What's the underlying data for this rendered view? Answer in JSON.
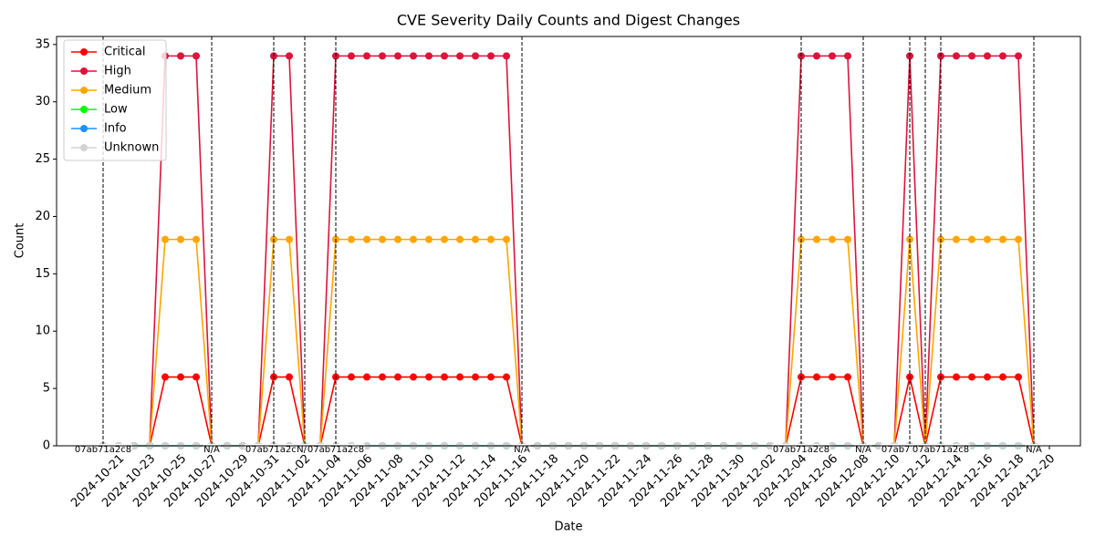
{
  "chart_data": {
    "type": "line",
    "title": "CVE Severity Daily Counts and Digest Changes",
    "x_label": "Date",
    "y_label": "Count",
    "x": [
      "2024-10-20",
      "2024-10-21",
      "2024-10-22",
      "2024-10-23",
      "2024-10-24",
      "2024-10-25",
      "2024-10-26",
      "2024-10-27",
      "2024-10-28",
      "2024-10-29",
      "2024-10-30",
      "2024-10-31",
      "2024-11-01",
      "2024-11-02",
      "2024-11-03",
      "2024-11-04",
      "2024-11-05",
      "2024-11-06",
      "2024-11-07",
      "2024-11-08",
      "2024-11-09",
      "2024-11-10",
      "2024-11-11",
      "2024-11-12",
      "2024-11-13",
      "2024-11-14",
      "2024-11-15",
      "2024-11-16",
      "2024-11-17",
      "2024-11-18",
      "2024-11-19",
      "2024-11-20",
      "2024-11-21",
      "2024-11-22",
      "2024-11-23",
      "2024-11-24",
      "2024-11-25",
      "2024-11-26",
      "2024-11-27",
      "2024-11-28",
      "2024-11-29",
      "2024-11-30",
      "2024-12-01",
      "2024-12-02",
      "2024-12-03",
      "2024-12-04",
      "2024-12-05",
      "2024-12-06",
      "2024-12-07",
      "2024-12-08",
      "2024-12-09",
      "2024-12-10",
      "2024-12-11",
      "2024-12-12",
      "2024-12-13",
      "2024-12-14",
      "2024-12-15",
      "2024-12-16",
      "2024-12-17",
      "2024-12-18",
      "2024-12-19"
    ],
    "series": [
      {
        "name": "Critical",
        "color": "#ff0000",
        "values": [
          0,
          0,
          0,
          0,
          6,
          6,
          6,
          0,
          0,
          0,
          0,
          6,
          6,
          0,
          0,
          6,
          6,
          6,
          6,
          6,
          6,
          6,
          6,
          6,
          6,
          6,
          6,
          0,
          0,
          0,
          0,
          0,
          0,
          0,
          0,
          0,
          0,
          0,
          0,
          0,
          0,
          0,
          0,
          0,
          0,
          6,
          6,
          6,
          6,
          0,
          0,
          0,
          6,
          0,
          6,
          6,
          6,
          6,
          6,
          6,
          0
        ]
      },
      {
        "name": "High",
        "color": "#dc143c",
        "values": [
          0,
          0,
          0,
          0,
          34,
          34,
          34,
          0,
          0,
          0,
          0,
          34,
          34,
          0,
          0,
          34,
          34,
          34,
          34,
          34,
          34,
          34,
          34,
          34,
          34,
          34,
          34,
          0,
          0,
          0,
          0,
          0,
          0,
          0,
          0,
          0,
          0,
          0,
          0,
          0,
          0,
          0,
          0,
          0,
          0,
          34,
          34,
          34,
          34,
          0,
          0,
          0,
          34,
          0,
          34,
          34,
          34,
          34,
          34,
          34,
          0
        ]
      },
      {
        "name": "Medium",
        "color": "#ffa500",
        "values": [
          0,
          0,
          0,
          0,
          18,
          18,
          18,
          0,
          0,
          0,
          0,
          18,
          18,
          0,
          0,
          18,
          18,
          18,
          18,
          18,
          18,
          18,
          18,
          18,
          18,
          18,
          18,
          0,
          0,
          0,
          0,
          0,
          0,
          0,
          0,
          0,
          0,
          0,
          0,
          0,
          0,
          0,
          0,
          0,
          0,
          18,
          18,
          18,
          18,
          0,
          0,
          0,
          18,
          0,
          18,
          18,
          18,
          18,
          18,
          18,
          0
        ]
      },
      {
        "name": "Low",
        "color": "#00ff00",
        "values": [
          0,
          0,
          0,
          0,
          0,
          0,
          0,
          0,
          0,
          0,
          0,
          0,
          0,
          0,
          0,
          0,
          0,
          0,
          0,
          0,
          0,
          0,
          0,
          0,
          0,
          0,
          0,
          0,
          0,
          0,
          0,
          0,
          0,
          0,
          0,
          0,
          0,
          0,
          0,
          0,
          0,
          0,
          0,
          0,
          0,
          0,
          0,
          0,
          0,
          0,
          0,
          0,
          0,
          0,
          0,
          0,
          0,
          0,
          0,
          0,
          0
        ]
      },
      {
        "name": "Info",
        "color": "#1e90ff",
        "values": [
          0,
          0,
          0,
          0,
          0,
          0,
          0,
          0,
          0,
          0,
          0,
          0,
          0,
          0,
          0,
          0,
          0,
          0,
          0,
          0,
          0,
          0,
          0,
          0,
          0,
          0,
          0,
          0,
          0,
          0,
          0,
          0,
          0,
          0,
          0,
          0,
          0,
          0,
          0,
          0,
          0,
          0,
          0,
          0,
          0,
          0,
          0,
          0,
          0,
          0,
          0,
          0,
          0,
          0,
          0,
          0,
          0,
          0,
          0,
          0,
          0
        ]
      },
      {
        "name": "Unknown",
        "color": "#d3d3d3",
        "values": [
          0,
          0,
          0,
          0,
          0,
          0,
          0,
          0,
          0,
          0,
          0,
          0,
          0,
          0,
          0,
          0,
          0,
          0,
          0,
          0,
          0,
          0,
          0,
          0,
          0,
          0,
          0,
          0,
          0,
          0,
          0,
          0,
          0,
          0,
          0,
          0,
          0,
          0,
          0,
          0,
          0,
          0,
          0,
          0,
          0,
          0,
          0,
          0,
          0,
          0,
          0,
          0,
          0,
          0,
          0,
          0,
          0,
          0,
          0,
          0,
          0
        ]
      }
    ],
    "annotations": [
      {
        "x": "2024-10-20",
        "label": "07ab71a2c8"
      },
      {
        "x": "2024-10-27",
        "label": "N/A"
      },
      {
        "x": "2024-10-31",
        "label": "07ab71a2c8"
      },
      {
        "x": "2024-11-02",
        "label": "N/A"
      },
      {
        "x": "2024-11-04",
        "label": "07ab71a2c8"
      },
      {
        "x": "2024-11-16",
        "label": "N/A"
      },
      {
        "x": "2024-12-04",
        "label": "07ab71a2c8"
      },
      {
        "x": "2024-12-08",
        "label": "N/A"
      },
      {
        "x": "2024-12-11",
        "label": "07ab71a2c8"
      },
      {
        "x": "2024-12-12",
        "label": "N/A"
      },
      {
        "x": "2024-12-13",
        "label": "07ab71a2c8"
      },
      {
        "x": "2024-12-19",
        "label": "N/A"
      }
    ],
    "xlim": [
      "2024-10-17",
      "2024-12-22"
    ],
    "xticks": [
      "2024-10-21",
      "2024-10-23",
      "2024-10-25",
      "2024-10-27",
      "2024-10-29",
      "2024-10-31",
      "2024-11-02",
      "2024-11-04",
      "2024-11-06",
      "2024-11-08",
      "2024-11-10",
      "2024-11-12",
      "2024-11-14",
      "2024-11-16",
      "2024-11-18",
      "2024-11-20",
      "2024-11-22",
      "2024-11-24",
      "2024-11-26",
      "2024-11-28",
      "2024-11-30",
      "2024-12-02",
      "2024-12-04",
      "2024-12-06",
      "2024-12-08",
      "2024-12-10",
      "2024-12-12",
      "2024-12-14",
      "2024-12-16",
      "2024-12-18",
      "2024-12-20"
    ],
    "ylim": [
      0,
      35.7
    ],
    "yticks": [
      0,
      5,
      10,
      15,
      20,
      25,
      30,
      35
    ],
    "legend": "upper left"
  }
}
